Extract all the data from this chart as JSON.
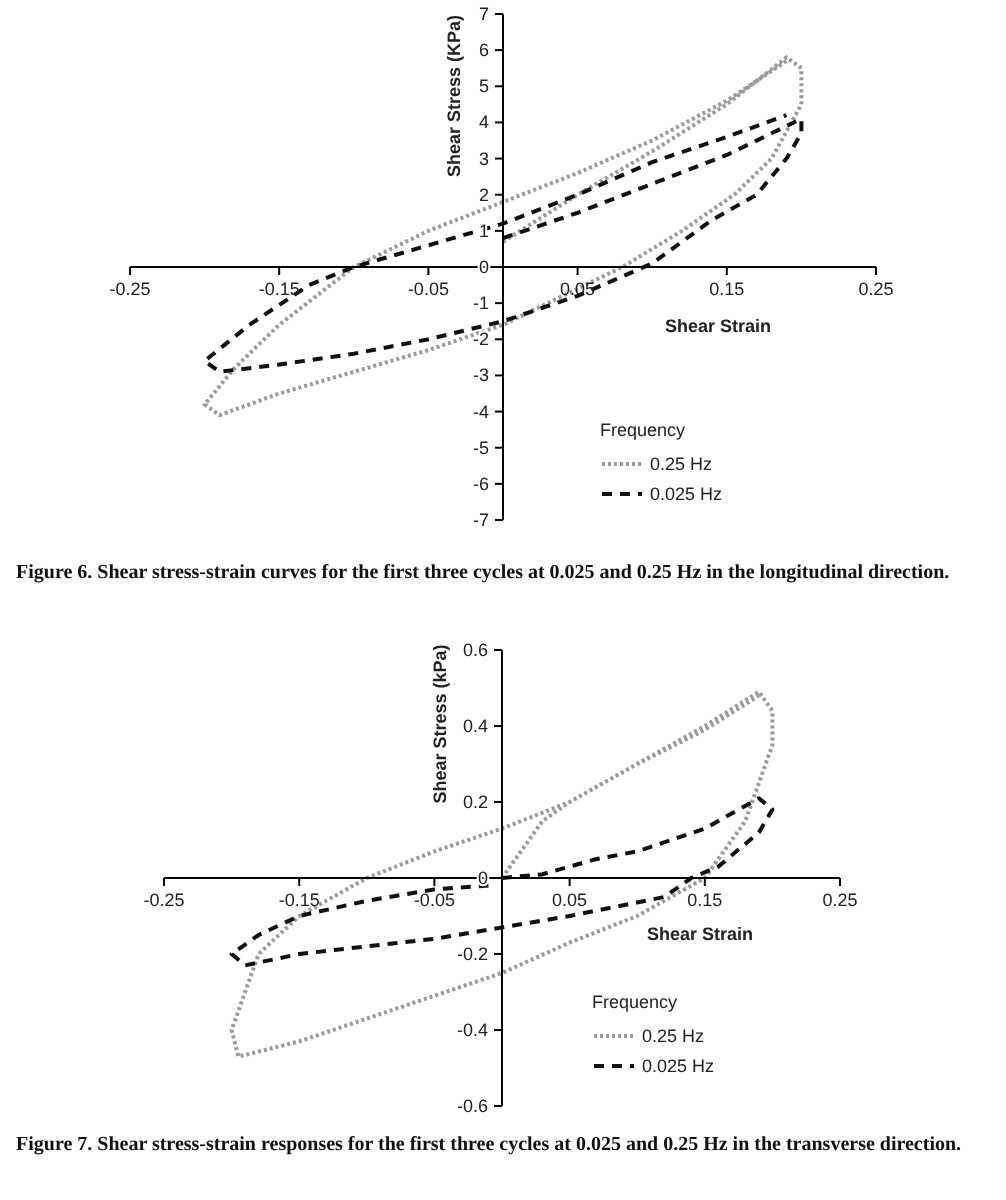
{
  "chart_data": [
    {
      "type": "line",
      "xlabel": "Shear Strain",
      "ylabel": "Shear Stress (KPa)",
      "xlim": [
        -0.25,
        0.25
      ],
      "ylim": [
        -7,
        7
      ],
      "xticks": [
        -0.25,
        -0.15,
        -0.05,
        0.05,
        0.15,
        0.25
      ],
      "yticks": [
        -7,
        -6,
        -5,
        -4,
        -3,
        -2,
        -1,
        0,
        1,
        2,
        3,
        4,
        5,
        6,
        7
      ],
      "grid": false,
      "marker": "none",
      "legend": "bottom right",
      "legend_title": "Frequency",
      "annotations": [
        "Figure 6. Shear stress-strain curves for the first three cycles at 0.025 and 0.25 Hz in the longitudinal direction."
      ],
      "series": [
        {
          "name": "0.25 Hz",
          "color": "#999999",
          "line_style": "dotted",
          "x": [
            0,
            0.05,
            0.1,
            0.15,
            0.19,
            0.2,
            0.2,
            0.18,
            0.155,
            0.12,
            0.08,
            0.04,
            0,
            -0.05,
            -0.1,
            -0.15,
            -0.19,
            -0.2,
            -0.18,
            -0.15,
            -0.1,
            -0.05,
            0,
            0.05,
            0.1,
            0.15,
            0.19
          ],
          "values": [
            0.7,
            2.0,
            3.2,
            4.5,
            5.8,
            5.5,
            4.5,
            3,
            2,
            1,
            0,
            -0.8,
            -1.6,
            -2.3,
            -2.9,
            -3.5,
            -4.1,
            -3.8,
            -2.8,
            -1.6,
            0,
            1,
            1.8,
            2.6,
            3.5,
            4.6,
            5.7
          ]
        },
        {
          "name": "0.025 Hz",
          "color": "#111111",
          "line_style": "dashed",
          "x": [
            0,
            0.05,
            0.1,
            0.15,
            0.2,
            0.2,
            0.19,
            0.17,
            0.14,
            0.1,
            0.05,
            0,
            -0.05,
            -0.1,
            -0.15,
            -0.19,
            -0.2,
            -0.17,
            -0.13,
            -0.1,
            -0.05,
            0,
            0.05,
            0.1,
            0.15,
            0.19
          ],
          "values": [
            0.8,
            1.5,
            2.3,
            3.1,
            4.1,
            3.7,
            3,
            2,
            1.3,
            0.1,
            -0.8,
            -1.5,
            -2,
            -2.4,
            -2.7,
            -2.9,
            -2.6,
            -1.6,
            -0.5,
            0,
            0.6,
            1.2,
            2,
            2.9,
            3.6,
            4.2
          ]
        }
      ]
    },
    {
      "type": "line",
      "xlabel": "Shear Strain",
      "ylabel": "Shear Stress (kPa)",
      "xlim": [
        -0.25,
        0.25
      ],
      "ylim": [
        -0.6,
        0.6
      ],
      "xticks": [
        -0.25,
        -0.15,
        -0.05,
        0.05,
        0.15,
        0.25
      ],
      "yticks": [
        -0.6,
        -0.4,
        -0.2,
        0,
        0.2,
        0.4,
        0.6
      ],
      "grid": false,
      "marker": "none",
      "legend": "bottom right",
      "legend_title": "Frequency",
      "annotations": [
        "Figure 7. Shear stress-strain responses for the first three cycles at 0.025 and 0.25 Hz in the transverse direction."
      ],
      "series": [
        {
          "name": "0.25 Hz",
          "color": "#999999",
          "line_style": "dotted",
          "x": [
            0,
            0.01,
            0.03,
            0.05,
            0.1,
            0.15,
            0.19,
            0.2,
            0.2,
            0.18,
            0.15,
            0.12,
            0.1,
            0.05,
            0,
            -0.05,
            -0.1,
            -0.15,
            -0.195,
            -0.2,
            -0.18,
            -0.15,
            -0.1,
            -0.05,
            0,
            0.05,
            0.1,
            0.15,
            0.19
          ],
          "values": [
            0,
            0.05,
            0.15,
            0.2,
            0.3,
            0.4,
            0.49,
            0.44,
            0.35,
            0.15,
            0,
            -0.06,
            -0.1,
            -0.17,
            -0.25,
            -0.31,
            -0.37,
            -0.43,
            -0.47,
            -0.4,
            -0.2,
            -0.1,
            0,
            0.07,
            0.13,
            0.2,
            0.3,
            0.39,
            0.48
          ]
        },
        {
          "name": "0.025 Hz",
          "color": "#111111",
          "line_style": "dashed",
          "x": [
            0,
            0.03,
            0.07,
            0.1,
            0.15,
            0.19,
            0.2,
            0.19,
            0.16,
            0.14,
            0.12,
            0.05,
            0,
            -0.05,
            -0.1,
            -0.15,
            -0.19,
            -0.2,
            -0.18,
            -0.15,
            -0.1,
            -0.05,
            -0.01
          ],
          "values": [
            0,
            0.01,
            0.05,
            0.07,
            0.13,
            0.21,
            0.18,
            0.12,
            0.03,
            0,
            -0.05,
            -0.1,
            -0.13,
            -0.16,
            -0.18,
            -0.2,
            -0.23,
            -0.2,
            -0.15,
            -0.1,
            -0.06,
            -0.03,
            -0.02
          ]
        }
      ]
    }
  ]
}
